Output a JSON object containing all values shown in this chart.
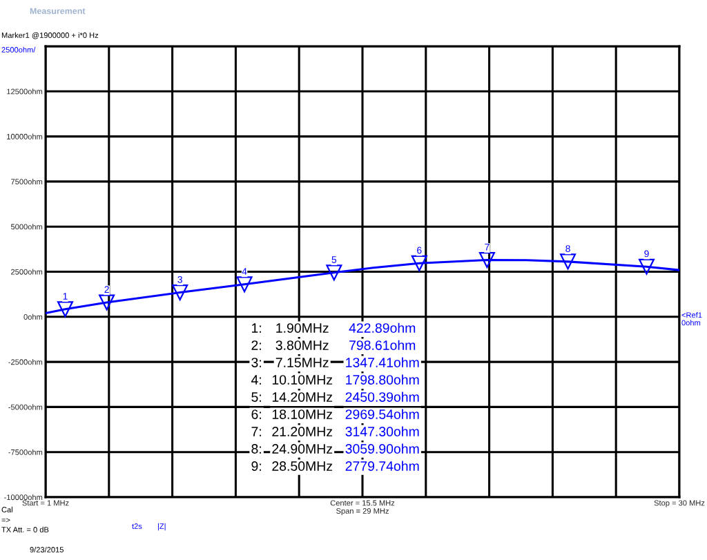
{
  "chart_data": {
    "type": "line",
    "title": "Measurement",
    "xlim": [
      1,
      30
    ],
    "xticks": [
      {
        "value": 1,
        "label": "Start = 1 MHz"
      },
      {
        "value": 3.9,
        "label": null
      },
      {
        "value": 6.8,
        "label": null
      },
      {
        "value": 9.7,
        "label": null
      },
      {
        "value": 12.6,
        "label": null
      },
      {
        "value": 15.5,
        "label": "Center = 15.5 MHz\nSpan = 29 MHz"
      },
      {
        "value": 18.4,
        "label": null
      },
      {
        "value": 21.3,
        "label": null
      },
      {
        "value": 24.2,
        "label": null
      },
      {
        "value": 27.1,
        "label": null
      },
      {
        "value": 30,
        "label": "Stop = 30 MHz"
      }
    ],
    "ylim": [
      -10000,
      15000
    ],
    "yticks": [
      {
        "value": -10000,
        "label": "-10000ohm"
      },
      {
        "value": -7500,
        "label": "-7500ohm"
      },
      {
        "value": -5000,
        "label": "-5000ohm"
      },
      {
        "value": -2500,
        "label": "-2500ohm"
      },
      {
        "value": 0,
        "label": "0ohm"
      },
      {
        "value": 2500,
        "label": "2500ohm"
      },
      {
        "value": 5000,
        "label": "5000ohm"
      },
      {
        "value": 7500,
        "label": "7500ohm"
      },
      {
        "value": 10000,
        "label": "10000ohm"
      },
      {
        "value": 12500,
        "label": "12500ohm"
      },
      {
        "value": 15000,
        "label": null
      }
    ],
    "grid": true,
    "series": [
      {
        "color": "#0000ff",
        "line_style": "solid",
        "x": [
          1,
          1.9,
          3.8,
          7.15,
          10.1,
          14.2,
          16,
          18.1,
          21.2,
          23,
          24.9,
          28.5,
          30
        ],
        "values": [
          200,
          422.89,
          798.61,
          1347.41,
          1798.8,
          2450.39,
          2720,
          2969.54,
          3147.3,
          3140,
          3059.9,
          2779.74,
          2590
        ]
      },
      {
        "type": "scatter",
        "color": "#0000ff",
        "marker": "triangle",
        "x": [
          1.9,
          3.8,
          7.15,
          10.1,
          14.2,
          18.1,
          21.2,
          24.9,
          28.5
        ],
        "values": [
          422.89,
          798.61,
          1347.41,
          1798.8,
          2450.39,
          2969.54,
          3147.3,
          3059.9,
          2779.74
        ]
      }
    ],
    "annotations": [
      "Marker1 @1900000 + i*0 Hz",
      "2500ohm/",
      "<Ref1\n0ohm",
      "Cal",
      "=>",
      "TX Att. = 0 dB",
      "t2s",
      "|Z|",
      "9/23/2015",
      {
        "text": "1",
        "x": 1.9,
        "y": 422.89
      },
      {
        "text": "2",
        "x": 3.8,
        "y": 798.61
      },
      {
        "text": "3",
        "x": 7.15,
        "y": 1347.41
      },
      {
        "text": "4",
        "x": 10.1,
        "y": 1798.8
      },
      {
        "text": "5",
        "x": 14.2,
        "y": 2450.39
      },
      {
        "text": "6",
        "x": 18.1,
        "y": 2969.54
      },
      {
        "text": "7",
        "x": 21.2,
        "y": 3147.3
      },
      {
        "text": "8",
        "x": 24.9,
        "y": 3059.9
      },
      {
        "text": "9",
        "x": 28.5,
        "y": 2779.74
      },
      "1:",
      "1.90MHz",
      "422.89ohm",
      "2:",
      "3.80MHz",
      "798.61ohm",
      "3:",
      "7.15MHz",
      "1347.41ohm",
      "4:",
      "10.10MHz",
      "1798.80ohm",
      "5:",
      "14.20MHz",
      "2450.39ohm",
      "6:",
      "18.10MHz",
      "2969.54ohm",
      "7:",
      "21.20MHz",
      "3147.30ohm",
      "8:",
      "24.90MHz",
      "3059.90ohm",
      "9:",
      "28.50MHz",
      "2779.74ohm"
    ]
  }
}
